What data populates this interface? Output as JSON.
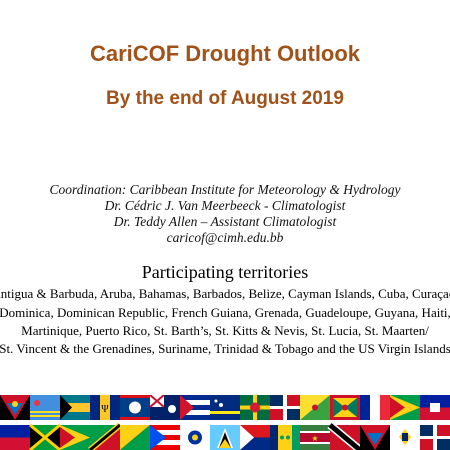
{
  "header": {
    "title": "CariCOF Drought Outlook",
    "subtitle": "By the end of August 2019"
  },
  "coordination": {
    "line1": "Coordination: Caribbean Institute for Meteorology & Hydrology",
    "line2": "Dr. Cédric J. Van Meerbeeck - Climatologist",
    "line3": "Dr. Teddy Allen – Assistant Climatologist",
    "email": "caricof@cimh.edu.bb"
  },
  "participating": {
    "heading": "Participating territories",
    "lines": [
      "Antigua & Barbuda, Aruba, Bahamas, Barbados, Belize, Cayman Islands, Cuba, Curaçao,",
      "Dominica, Dominican Republic, French Guiana, Grenada, Guadeloupe, Guyana, Haiti,",
      "Martinique, Puerto Rico, St. Barth’s, St. Kitts & Nevis, St. Lucia, St. Maarten/",
      "St. Vincent & the Grenadines, Suriname, Trinidad & Tobago and the US Virgin Islands"
    ]
  },
  "flags": {
    "description_icons": "flag-icons",
    "row1": [
      "#1e3a8a",
      "#ffffff",
      "#c8102e",
      "#00267f",
      "#ffd100",
      "#0033a0",
      "#002868",
      "#c8102e",
      "#002590",
      "#009e49",
      "#fcd116",
      "#ce1126",
      "#006b3f",
      "#ffffff",
      "#002d62"
    ],
    "row2": [
      "#00209f",
      "#009e60",
      "#ce1126",
      "#000000",
      "#00843d",
      "#ffffff",
      "#ed2939",
      "#66ccff",
      "#009e60",
      "#000000",
      "#377e3f",
      "#ce1126",
      "#000000",
      "#ffffff",
      "#002868"
    ]
  }
}
